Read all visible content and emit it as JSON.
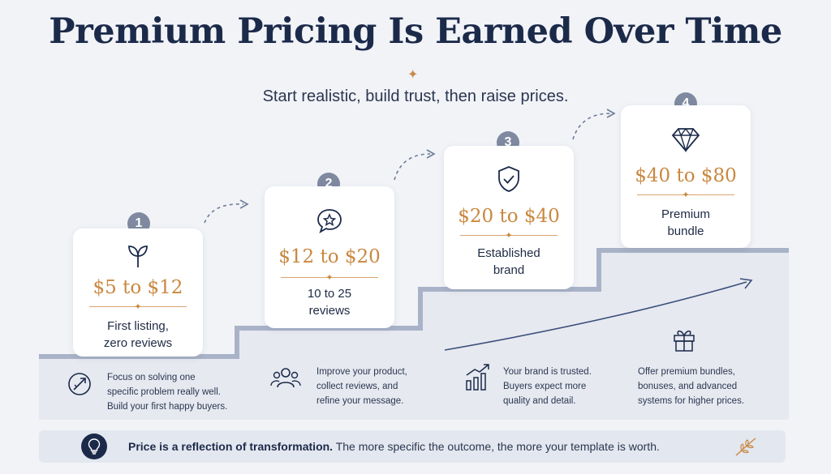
{
  "header": {
    "title": "Premium Pricing Is Earned Over Time",
    "subtitle": "Start realistic, build trust, then raise prices."
  },
  "steps": [
    {
      "number": "1",
      "icon": "sprout-icon",
      "price": "$5 to $12",
      "label_line1": "First listing,",
      "label_line2": "zero reviews",
      "desc_icon": "target-arrow-icon",
      "desc_line1": "Focus on solving one",
      "desc_line2": "specific problem really well.",
      "desc_line3": "Build your first happy buyers."
    },
    {
      "number": "2",
      "icon": "star-chat-icon",
      "price": "$12 to $20",
      "label_line1": "10 to 25",
      "label_line2": "reviews",
      "desc_icon": "users-icon",
      "desc_line1": "Improve your product,",
      "desc_line2": "collect reviews, and",
      "desc_line3": "refine your message."
    },
    {
      "number": "3",
      "icon": "shield-check-icon",
      "price": "$20 to $40",
      "label_line1": "Established",
      "label_line2": "brand",
      "desc_icon": "growth-chart-icon",
      "desc_line1": "Your brand is trusted.",
      "desc_line2": "Buyers expect more",
      "desc_line3": "quality and detail."
    },
    {
      "number": "4",
      "icon": "diamond-icon",
      "price": "$40 to $80",
      "label_line1": "Premium",
      "label_line2": "bundle",
      "desc_icon": "gift-icon",
      "desc_line1": "Offer premium bundles,",
      "desc_line2": "bonuses, and advanced",
      "desc_line3": "systems for higher prices."
    }
  ],
  "footer": {
    "icon": "lightbulb-icon",
    "bold_text": "Price is a reflection of transformation.",
    "text": " The more specific the outcome, the more your template is worth."
  },
  "colors": {
    "navy": "#1c2a4a",
    "accent": "#c98840",
    "badge": "#7f8aa1",
    "stair": "#a9b3c8"
  }
}
